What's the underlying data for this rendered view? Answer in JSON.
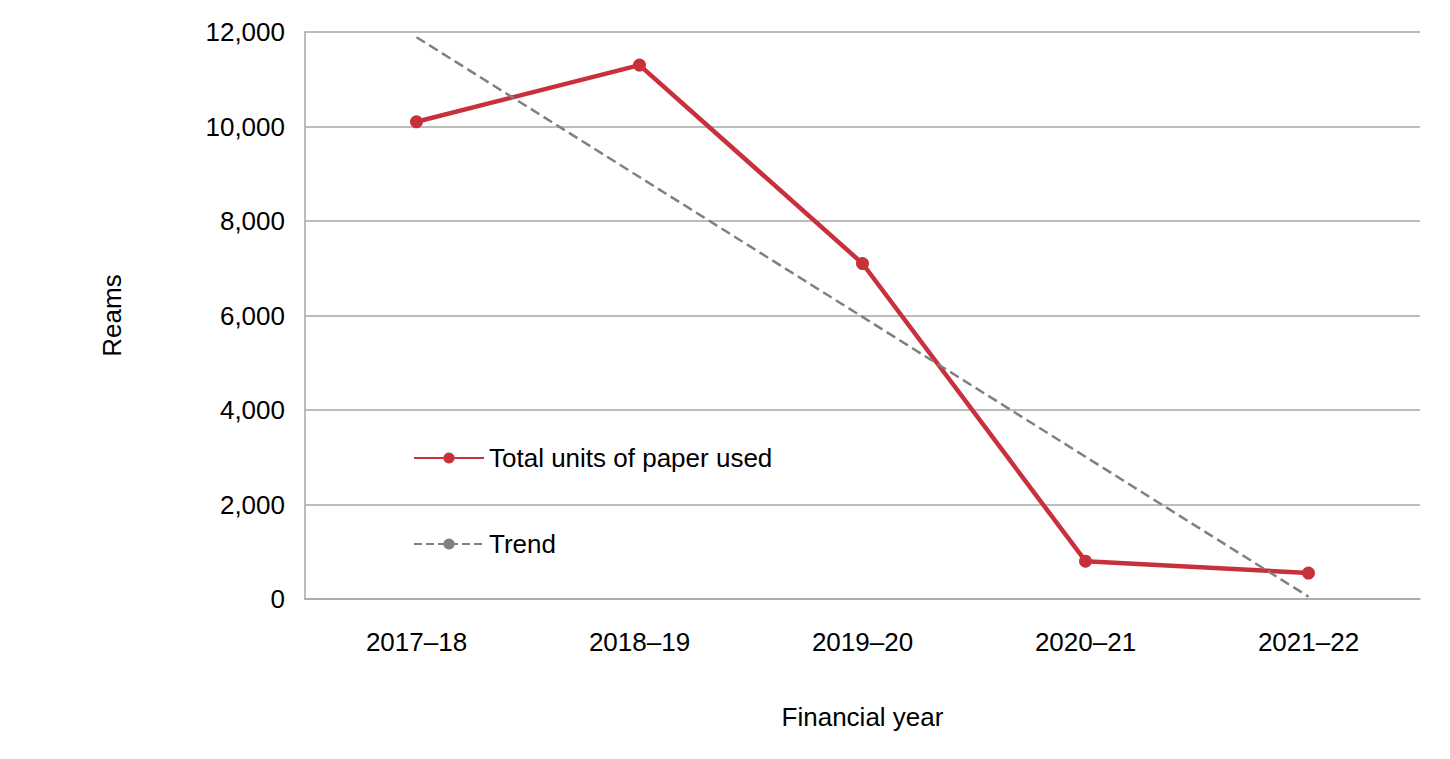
{
  "chart_data": {
    "type": "line",
    "x_label": "Financial year",
    "y_label": "Reams",
    "categories": [
      "2017–18",
      "2018–19",
      "2019–20",
      "2020–21",
      "2021–22"
    ],
    "series": [
      {
        "name": "Total units of paper used",
        "color": "#c8313c",
        "marker": "circle",
        "line_style": "solid",
        "values": [
          10100,
          11300,
          7100,
          800,
          550
        ]
      },
      {
        "name": "Trend",
        "color": "#808080",
        "marker": "none",
        "line_style": "dashed",
        "values": [
          11890,
          8930,
          5970,
          3010,
          50
        ]
      }
    ],
    "ylim": [
      0,
      12000
    ],
    "yticks": [
      0,
      {
        "value": 2000,
        "label": "2,000"
      },
      {
        "value": 4000,
        "label": "4,000"
      },
      {
        "value": 6000,
        "label": "6,000"
      },
      {
        "value": 8000,
        "label": "8,000"
      },
      {
        "value": 10000,
        "label": "10,000"
      },
      {
        "value": 12000,
        "label": "12,000"
      }
    ],
    "grid": true,
    "legend": "lower-left"
  }
}
